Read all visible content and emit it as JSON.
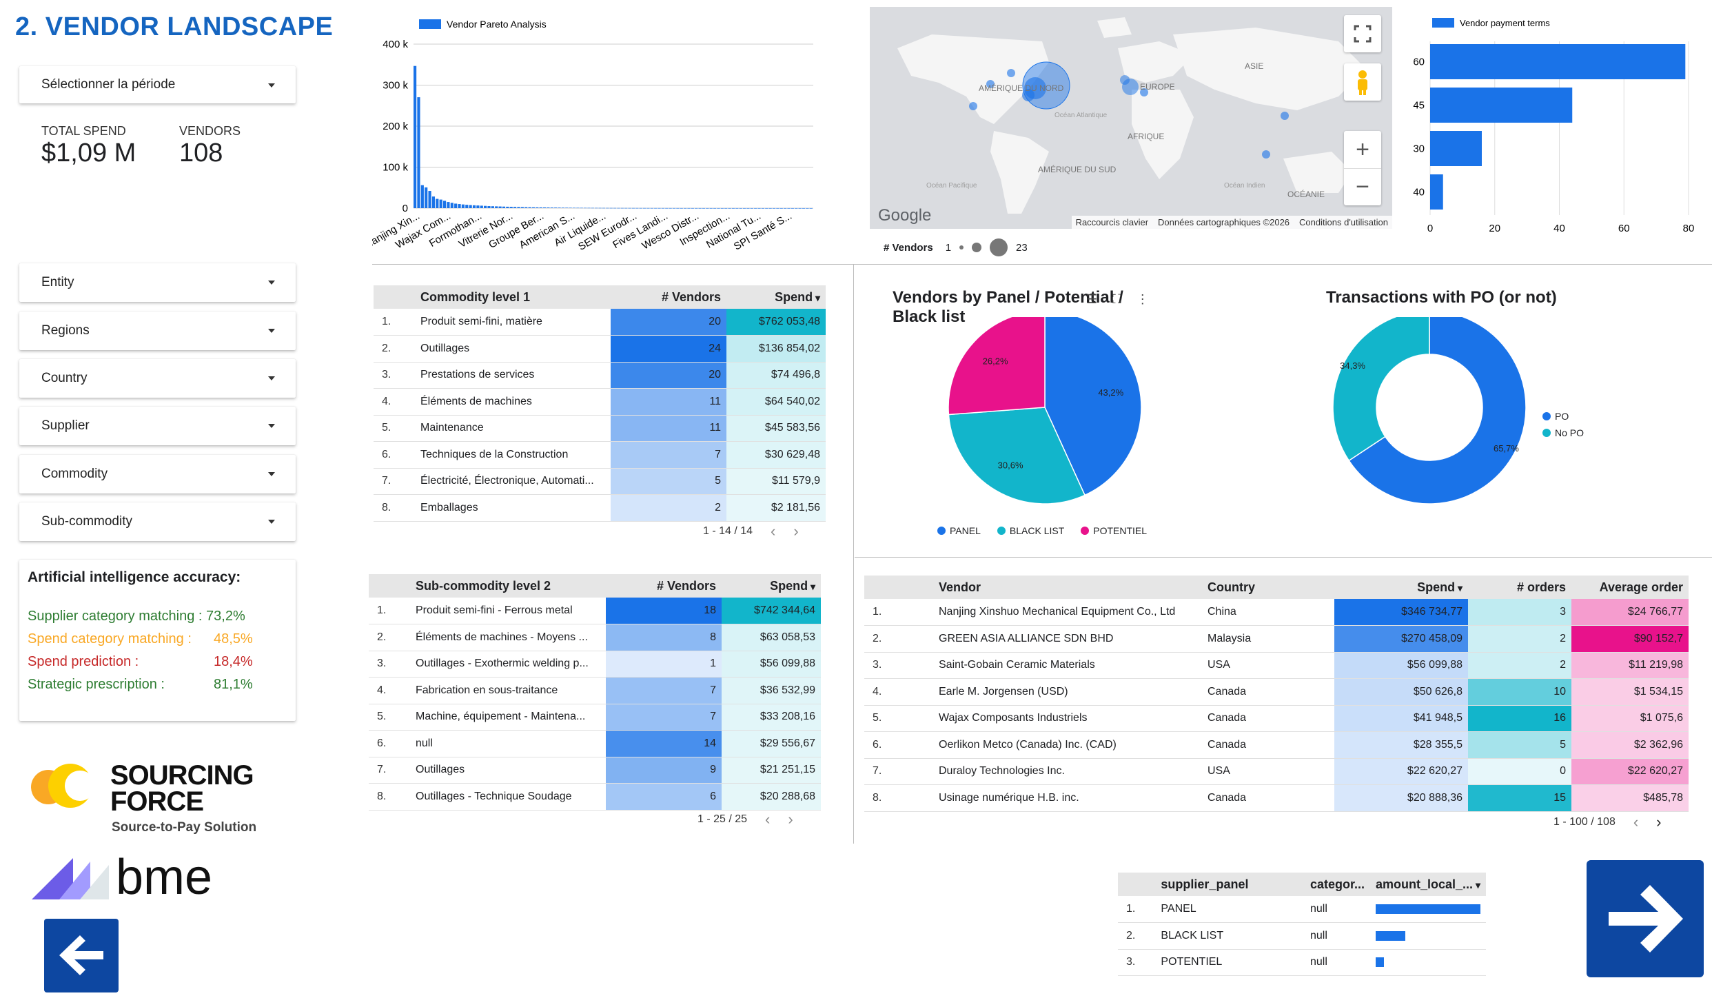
{
  "page_title": "2. VENDOR LANDSCAPE",
  "period_select": "Sélectionner la période",
  "kpis": {
    "total_spend_label": "TOTAL SPEND",
    "total_spend": "$1,09 M",
    "vendors_label": "VENDORS",
    "vendors": "108"
  },
  "filters": [
    "Entity",
    "Regions",
    "Country",
    "Supplier",
    "Commodity",
    "Sub-commodity"
  ],
  "ai": {
    "title": "Artificial intelligence accuracy:",
    "rows": [
      {
        "label": "Supplier category matching : 73,2%",
        "value": "",
        "color": "#2e7d32"
      },
      {
        "label": "Spend category matching :",
        "value": "48,5%",
        "color": "#f9a825"
      },
      {
        "label": "Spend prediction :",
        "value": "18,4%",
        "color": "#c62828"
      },
      {
        "label": "Strategic prescription :",
        "value": "81,1%",
        "color": "#2e7d32"
      }
    ]
  },
  "logos": {
    "sourcing_line1": "SOURCING",
    "sourcing_line2": "FORCE",
    "sourcing_tag": "Source-to-Pay Solution",
    "bme": "bme"
  },
  "chart_data": [
    {
      "type": "bar",
      "title": "",
      "legend": "Vendor Pareto Analysis",
      "ylim": [
        0,
        400000
      ],
      "yticks": [
        "400 k",
        "300 k",
        "200 k",
        "100 k",
        "0"
      ],
      "tick_labels": [
        "Nanjing Xin...",
        "Wajax Com...",
        "Formothan...",
        "Vitrerie Nor...",
        "Groupe Ber...",
        "American S...",
        "Air Liquide...",
        "SEW Eurodr...",
        "Fives Landi...",
        "Wesco Distr...",
        "Inspection...",
        "National Tu...",
        "SPI Santé S..."
      ],
      "values": [
        346735,
        270458,
        56100,
        50627,
        41949,
        28356,
        22620,
        20888,
        18000,
        15000,
        13000,
        11000,
        10000,
        9000,
        8200,
        7500,
        7000,
        6500,
        6000,
        5500,
        5000,
        4700,
        4400,
        4100,
        3800,
        3500,
        3200,
        3000,
        2800,
        2600,
        2400,
        2200,
        2000,
        1900,
        1800,
        1700,
        1600,
        1500,
        1400,
        1300,
        1200,
        1100,
        1000,
        950,
        900,
        850,
        800,
        750,
        700,
        650,
        600,
        560,
        520,
        480,
        450,
        420,
        390,
        360,
        330,
        300,
        280,
        260,
        240,
        220,
        200,
        180,
        160,
        150,
        140,
        130,
        120,
        110,
        100,
        90,
        80,
        70,
        60,
        55,
        50,
        45,
        40,
        35,
        30,
        28,
        26,
        24,
        22,
        20,
        18,
        16,
        14,
        12,
        10,
        9,
        8,
        7,
        6,
        5,
        4,
        3,
        2,
        2,
        1,
        1,
        1,
        1,
        1,
        1
      ],
      "color": "#1a73e8"
    },
    {
      "type": "bar",
      "orientation": "horizontal",
      "legend": "Vendor payment terms",
      "categories": [
        "60",
        "45",
        "30",
        "40"
      ],
      "values": [
        79,
        44,
        16,
        4
      ],
      "xticks": [
        "0",
        "20",
        "40",
        "60",
        "80"
      ],
      "xlim": [
        0,
        80
      ],
      "color": "#1a73e8"
    },
    {
      "type": "pie",
      "title": "Vendors by Panel / Potential / Black list",
      "slices": [
        {
          "name": "PANEL",
          "value": 43.2,
          "label": "43,2%",
          "color": "#1a73e8"
        },
        {
          "name": "BLACK LIST",
          "value": 30.6,
          "label": "30,6%",
          "color": "#12b5cb"
        },
        {
          "name": "POTENTIEL",
          "value": 26.2,
          "label": "26,2%",
          "color": "#e8128b"
        }
      ]
    },
    {
      "type": "pie",
      "donut": true,
      "title": "Transactions with PO (or not)",
      "slices": [
        {
          "name": "PO",
          "value": 65.7,
          "label": "65,7%",
          "color": "#1a73e8"
        },
        {
          "name": "No PO",
          "value": 34.3,
          "label": "34,3%",
          "color": "#12b5cb"
        }
      ]
    }
  ],
  "map": {
    "labels": [
      "AMÉRIQUE DU NORD",
      "EUROPE",
      "ASIE",
      "AFRIQUE",
      "Océan Atlantique",
      "AMÉRIQUE DU SUD",
      "Océan Pacifique",
      "Océan Indien",
      "OCÉANIE"
    ],
    "google": "Google",
    "footer": [
      "Raccourcis clavier",
      "Données cartographiques ©2026",
      "Conditions d'utilisation"
    ],
    "legend_label": "# Vendors",
    "legend_min": "1",
    "legend_max": "23"
  },
  "commodity_table": {
    "headers": [
      "Commodity level 1",
      "# Vendors",
      "Spend"
    ],
    "rows": [
      {
        "i": "1.",
        "name": "Produit semi-fini, matière",
        "vendors": "20",
        "spend": "$762 053,48"
      },
      {
        "i": "2.",
        "name": "Outillages",
        "vendors": "24",
        "spend": "$136 854,02"
      },
      {
        "i": "3.",
        "name": "Prestations de services",
        "vendors": "20",
        "spend": "$74 496,8"
      },
      {
        "i": "4.",
        "name": "Éléments de machines",
        "vendors": "11",
        "spend": "$64 540,02"
      },
      {
        "i": "5.",
        "name": "Maintenance",
        "vendors": "11",
        "spend": "$45 583,56"
      },
      {
        "i": "6.",
        "name": "Techniques de la Construction",
        "vendors": "7",
        "spend": "$30 629,48"
      },
      {
        "i": "7.",
        "name": "Électricité, Électronique, Automati...",
        "vendors": "5",
        "spend": "$11 579,9"
      },
      {
        "i": "8.",
        "name": "Emballages",
        "vendors": "2",
        "spend": "$2 181,56"
      }
    ],
    "pager": "1 - 14 / 14"
  },
  "subcommodity_table": {
    "headers": [
      "Sub-commodity level 2",
      "# Vendors",
      "Spend"
    ],
    "rows": [
      {
        "i": "1.",
        "name": "Produit semi-fini - Ferrous metal",
        "vendors": "18",
        "spend": "$742 344,64"
      },
      {
        "i": "2.",
        "name": "Éléments de machines - Moyens ...",
        "vendors": "8",
        "spend": "$63 058,53"
      },
      {
        "i": "3.",
        "name": "Outillages - Exothermic welding p...",
        "vendors": "1",
        "spend": "$56 099,88"
      },
      {
        "i": "4.",
        "name": "Fabrication en sous-traitance",
        "vendors": "7",
        "spend": "$36 532,99"
      },
      {
        "i": "5.",
        "name": "Machine, équipement - Maintena...",
        "vendors": "7",
        "spend": "$33 208,16"
      },
      {
        "i": "6.",
        "name": "null",
        "vendors": "14",
        "spend": "$29 556,67"
      },
      {
        "i": "7.",
        "name": "Outillages",
        "vendors": "9",
        "spend": "$21 251,15"
      },
      {
        "i": "8.",
        "name": "Outillages - Technique Soudage",
        "vendors": "6",
        "spend": "$20 288,68"
      }
    ],
    "pager": "1 - 25 / 25"
  },
  "vendor_table": {
    "headers": [
      "Vendor",
      "Country",
      "Spend",
      "# orders",
      "Average order"
    ],
    "rows": [
      {
        "i": "1.",
        "name": "Nanjing Xinshuo Mechanical Equipment Co., Ltd",
        "country": "China",
        "spend": "$346 734,77",
        "orders": "3",
        "avg": "$24 766,77"
      },
      {
        "i": "2.",
        "name": "GREEN ASIA ALLIANCE SDN BHD",
        "country": "Malaysia",
        "spend": "$270 458,09",
        "orders": "2",
        "avg": "$90 152,7"
      },
      {
        "i": "3.",
        "name": "Saint-Gobain Ceramic Materials",
        "country": "USA",
        "spend": "$56 099,88",
        "orders": "2",
        "avg": "$11 219,98"
      },
      {
        "i": "4.",
        "name": "Earle M. Jorgensen (USD)",
        "country": "Canada",
        "spend": "$50 626,8",
        "orders": "10",
        "avg": "$1 534,15"
      },
      {
        "i": "5.",
        "name": "Wajax Composants Industriels",
        "country": "Canada",
        "spend": "$41 948,5",
        "orders": "16",
        "avg": "$1 075,6"
      },
      {
        "i": "6.",
        "name": "Oerlikon Metco (Canada) Inc. (CAD)",
        "country": "Canada",
        "spend": "$28 355,5",
        "orders": "5",
        "avg": "$2 362,96"
      },
      {
        "i": "7.",
        "name": "Duraloy Technologies Inc.",
        "country": "USA",
        "spend": "$22 620,27",
        "orders": "0",
        "avg": "$22 620,27"
      },
      {
        "i": "8.",
        "name": "Usinage numérique H.B. inc.",
        "country": "Canada",
        "spend": "$20 888,36",
        "orders": "15",
        "avg": "$485,78"
      }
    ],
    "pager": "1 - 100 / 108"
  },
  "panel_table": {
    "headers": [
      "supplier_panel",
      "categor...",
      "amount_local_..."
    ],
    "rows": [
      {
        "i": "1.",
        "panel": "PANEL",
        "cat": "null",
        "amount": 100
      },
      {
        "i": "2.",
        "panel": "BLACK LIST",
        "cat": "null",
        "amount": 28
      },
      {
        "i": "3.",
        "panel": "POTENTIEL",
        "cat": "null",
        "amount": 8
      }
    ]
  },
  "colors": {
    "primary": "#1a73e8",
    "title": "#1565c0",
    "nav": "#0d47a1"
  }
}
